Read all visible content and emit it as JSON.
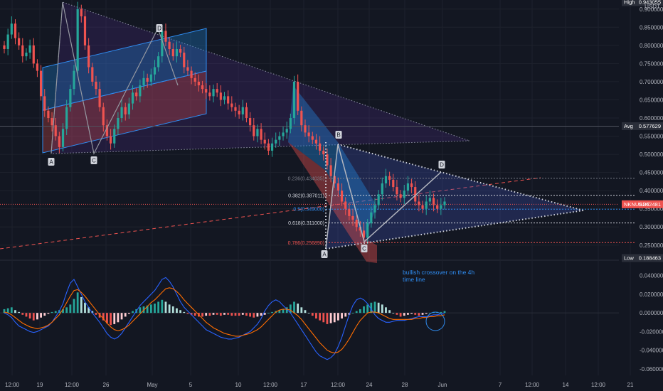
{
  "symbol": "NKNUSDT",
  "currency": "USDT",
  "colors": {
    "bg": "#131722",
    "up": "#26a69a",
    "down": "#ef5350",
    "grid": "#1e222d",
    "macd": "#2962ff",
    "signal": "#ff6d00",
    "fib_blue": "#2f8cf0"
  },
  "chart_data": [
    {
      "type": "candlestick",
      "ylim": [
        0.23,
        0.925
      ],
      "price_ticks": [
        "0.900000",
        "0.850000",
        "0.800000",
        "0.750000",
        "0.700000",
        "0.650000",
        "0.600000",
        "0.550000",
        "0.500000",
        "0.450000",
        "0.400000",
        "0.350000",
        "0.300000",
        "0.250000"
      ],
      "x_ticks": [
        "12:00",
        "19",
        "12:00",
        "26",
        "May",
        "5",
        "10",
        "12:00",
        "17",
        "12:00",
        "24",
        "28",
        "Jun",
        "7",
        "12:00",
        "14",
        "12:00",
        "21"
      ],
      "tags": [
        {
          "label": "High",
          "value": "0.943055",
          "y": 0.943
        },
        {
          "label": "Avg",
          "value": "0.577629",
          "y": 0.5776
        },
        {
          "label": "NKNUSDT",
          "value": "0.362481",
          "y": 0.3625
        },
        {
          "label": "Low",
          "value": "0.188463",
          "y": 0.1885
        }
      ],
      "fib_levels": [
        {
          "label": "0.236(0.434035)",
          "y": 0.434,
          "color": "#787b86"
        },
        {
          "label": "0.382(0.387011)",
          "y": 0.387,
          "color": "#d1d4dc"
        },
        {
          "label": "0.5(0.349000)",
          "y": 0.349,
          "color": "#2f8cf0"
        },
        {
          "label": "0.618(0.311000)",
          "y": 0.311,
          "color": "#d1d4dc"
        },
        {
          "label": "0.786(0.256890)",
          "y": 0.2569,
          "color": "#ef5350"
        }
      ],
      "pattern_points": [
        "A",
        "C",
        "D",
        "A",
        "B",
        "C",
        "D"
      ],
      "closes": [
        0.79,
        0.83,
        0.86,
        0.82,
        0.8,
        0.77,
        0.78,
        0.8,
        0.75,
        0.73,
        0.66,
        0.62,
        0.6,
        0.58,
        0.55,
        0.52,
        0.57,
        0.63,
        0.68,
        0.73,
        0.9,
        0.88,
        0.8,
        0.74,
        0.7,
        0.68,
        0.63,
        0.58,
        0.55,
        0.53,
        0.57,
        0.6,
        0.63,
        0.61,
        0.64,
        0.67,
        0.66,
        0.69,
        0.71,
        0.7,
        0.72,
        0.74,
        0.77,
        0.84,
        0.81,
        0.79,
        0.77,
        0.79,
        0.78,
        0.74,
        0.73,
        0.71,
        0.7,
        0.69,
        0.68,
        0.67,
        0.66,
        0.68,
        0.67,
        0.65,
        0.66,
        0.64,
        0.63,
        0.62,
        0.61,
        0.63,
        0.6,
        0.58,
        0.55,
        0.57,
        0.54,
        0.53,
        0.51,
        0.53,
        0.54,
        0.55,
        0.56,
        0.57,
        0.6,
        0.7,
        0.62,
        0.58,
        0.56,
        0.55,
        0.54,
        0.53,
        0.51,
        0.5,
        0.47,
        0.44,
        0.42,
        0.4,
        0.37,
        0.35,
        0.33,
        0.32,
        0.3,
        0.29,
        0.27,
        0.31,
        0.34,
        0.36,
        0.39,
        0.42,
        0.44,
        0.43,
        0.41,
        0.39,
        0.38,
        0.4,
        0.42,
        0.41,
        0.37,
        0.36,
        0.35,
        0.37,
        0.38,
        0.36,
        0.35,
        0.36,
        0.37
      ]
    },
    {
      "type": "macd-histogram",
      "title": "",
      "annotation": [
        "bullish crossover on the 4h",
        "time line"
      ],
      "ylim": [
        -0.067,
        0.052
      ],
      "ticks": [
        "0.040000",
        "0.020000",
        "0.000000",
        "-0.020000",
        "-0.040000",
        "-0.060000"
      ],
      "histogram": [
        0.004,
        0.005,
        0.006,
        0.003,
        0.001,
        -0.002,
        -0.004,
        -0.006,
        -0.008,
        -0.007,
        -0.005,
        -0.003,
        -0.001,
        0.001,
        0.002,
        0.003,
        0.004,
        0.006,
        0.009,
        0.015,
        0.022,
        0.017,
        0.011,
        0.006,
        0.002,
        -0.002,
        -0.005,
        -0.008,
        -0.011,
        -0.013,
        -0.012,
        -0.01,
        -0.007,
        -0.004,
        -0.001,
        0.002,
        0.004,
        0.006,
        0.007,
        0.008,
        0.009,
        0.01,
        0.012,
        0.014,
        0.012,
        0.009,
        0.007,
        0.005,
        0.003,
        0.001,
        -0.001,
        -0.002,
        -0.003,
        -0.004,
        -0.004,
        -0.003,
        -0.003,
        -0.002,
        -0.002,
        -0.003,
        -0.002,
        -0.002,
        -0.003,
        -0.003,
        -0.003,
        -0.002,
        -0.003,
        -0.004,
        -0.005,
        -0.004,
        -0.003,
        -0.002,
        0.0,
        0.001,
        0.002,
        0.003,
        0.004,
        0.006,
        0.009,
        0.012,
        0.01,
        0.006,
        0.003,
        0.0,
        -0.003,
        -0.006,
        -0.008,
        -0.01,
        -0.012,
        -0.011,
        -0.01,
        -0.008,
        -0.006,
        -0.004,
        -0.002,
        0.0,
        0.002,
        0.004,
        0.007,
        0.009,
        0.011,
        0.012,
        0.011,
        0.009,
        0.006,
        0.003,
        0.0,
        -0.002,
        -0.004,
        -0.003,
        -0.002,
        -0.001,
        -0.002,
        -0.003,
        -0.002,
        -0.001,
        0.0,
        0.001,
        0.001,
        0.001,
        0.002
      ],
      "macd": [
        0.0,
        -0.002,
        -0.005,
        -0.01,
        -0.014,
        -0.016,
        -0.018,
        -0.02,
        -0.021,
        -0.02,
        -0.018,
        -0.016,
        -0.014,
        -0.01,
        -0.004,
        0.002,
        0.01,
        0.022,
        0.032,
        0.036,
        0.028,
        0.02,
        0.012,
        0.006,
        0.0,
        -0.005,
        -0.01,
        -0.016,
        -0.022,
        -0.026,
        -0.028,
        -0.026,
        -0.022,
        -0.016,
        -0.01,
        -0.004,
        0.002,
        0.008,
        0.012,
        0.016,
        0.02,
        0.024,
        0.03,
        0.036,
        0.038,
        0.034,
        0.028,
        0.02,
        0.012,
        0.006,
        0.002,
        -0.002,
        -0.006,
        -0.01,
        -0.014,
        -0.018,
        -0.02,
        -0.022,
        -0.024,
        -0.026,
        -0.027,
        -0.028,
        -0.028,
        -0.027,
        -0.026,
        -0.024,
        -0.022,
        -0.02,
        -0.016,
        -0.012,
        -0.006,
        0.002,
        0.008,
        0.012,
        0.014,
        0.012,
        0.008,
        0.004,
        0.0,
        -0.006,
        -0.012,
        -0.018,
        -0.024,
        -0.03,
        -0.036,
        -0.042,
        -0.046,
        -0.048,
        -0.05,
        -0.048,
        -0.044,
        -0.036,
        -0.026,
        -0.014,
        -0.002,
        0.008,
        0.014,
        0.016,
        0.014,
        0.01,
        0.004,
        -0.002,
        -0.006,
        -0.008,
        -0.01,
        -0.01,
        -0.009,
        -0.008,
        -0.008,
        -0.008,
        -0.007,
        -0.006,
        -0.005,
        -0.004,
        -0.004,
        -0.004,
        -0.003,
        -0.002,
        -0.002,
        -0.001,
        0.0
      ],
      "signal": [
        0.001,
        0.0,
        -0.002,
        -0.005,
        -0.008,
        -0.011,
        -0.013,
        -0.015,
        -0.016,
        -0.017,
        -0.016,
        -0.015,
        -0.013,
        -0.01,
        -0.006,
        -0.002,
        0.004,
        0.011,
        0.018,
        0.024,
        0.025,
        0.022,
        0.018,
        0.013,
        0.008,
        0.003,
        -0.002,
        -0.006,
        -0.011,
        -0.015,
        -0.018,
        -0.019,
        -0.018,
        -0.016,
        -0.013,
        -0.009,
        -0.005,
        -0.001,
        0.003,
        0.007,
        0.011,
        0.014,
        0.018,
        0.022,
        0.026,
        0.027,
        0.026,
        0.023,
        0.019,
        0.014,
        0.01,
        0.006,
        0.002,
        -0.002,
        -0.006,
        -0.01,
        -0.013,
        -0.016,
        -0.018,
        -0.02,
        -0.022,
        -0.023,
        -0.024,
        -0.025,
        -0.025,
        -0.024,
        -0.023,
        -0.022,
        -0.02,
        -0.018,
        -0.015,
        -0.011,
        -0.007,
        -0.003,
        0.001,
        0.003,
        0.004,
        0.004,
        0.003,
        0.0,
        -0.003,
        -0.007,
        -0.012,
        -0.017,
        -0.022,
        -0.027,
        -0.032,
        -0.036,
        -0.04,
        -0.042,
        -0.043,
        -0.042,
        -0.039,
        -0.034,
        -0.028,
        -0.021,
        -0.014,
        -0.008,
        -0.004,
        0.0,
        0.001,
        0.001,
        0.0,
        -0.002,
        -0.004,
        -0.006,
        -0.007,
        -0.007,
        -0.007,
        -0.007,
        -0.007,
        -0.007,
        -0.006,
        -0.006,
        -0.005,
        -0.005,
        -0.004,
        -0.004,
        -0.003,
        -0.003,
        -0.002
      ]
    }
  ]
}
